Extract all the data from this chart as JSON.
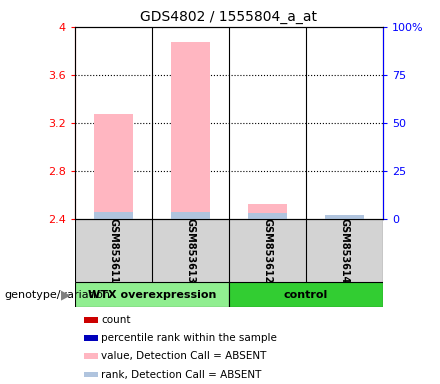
{
  "title": "GDS4802 / 1555804_a_at",
  "samples": [
    "GSM853611",
    "GSM853613",
    "GSM853612",
    "GSM853614"
  ],
  "ylim": [
    2.4,
    4.0
  ],
  "yticks_left": [
    2.4,
    2.8,
    3.2,
    3.6,
    4.0
  ],
  "yticks_right": [
    0,
    25,
    50,
    75,
    100
  ],
  "ytick_labels_left": [
    "2.4",
    "2.8",
    "3.2",
    "3.6",
    "4"
  ],
  "ytick_labels_right": [
    "0",
    "25",
    "50",
    "75",
    "100%"
  ],
  "bar_values": [
    3.27,
    3.87,
    2.52,
    2.4
  ],
  "bar_base": 2.4,
  "rank_values": [
    2.46,
    2.46,
    2.45,
    2.43
  ],
  "pink_bar_color": "#ffb6c1",
  "light_blue_color": "#b0c4de",
  "legend_items": [
    {
      "label": "count",
      "color": "#cc0000"
    },
    {
      "label": "percentile rank within the sample",
      "color": "#0000bb"
    },
    {
      "label": "value, Detection Call = ABSENT",
      "color": "#ffb6c1"
    },
    {
      "label": "rank, Detection Call = ABSENT",
      "color": "#b0c4de"
    }
  ],
  "group_label": "genotype/variation",
  "group_info": [
    {
      "start": 0,
      "end": 2,
      "label": "WTX overexpression",
      "color": "#90ee90"
    },
    {
      "start": 2,
      "end": 4,
      "label": "control",
      "color": "#32cd32"
    }
  ]
}
